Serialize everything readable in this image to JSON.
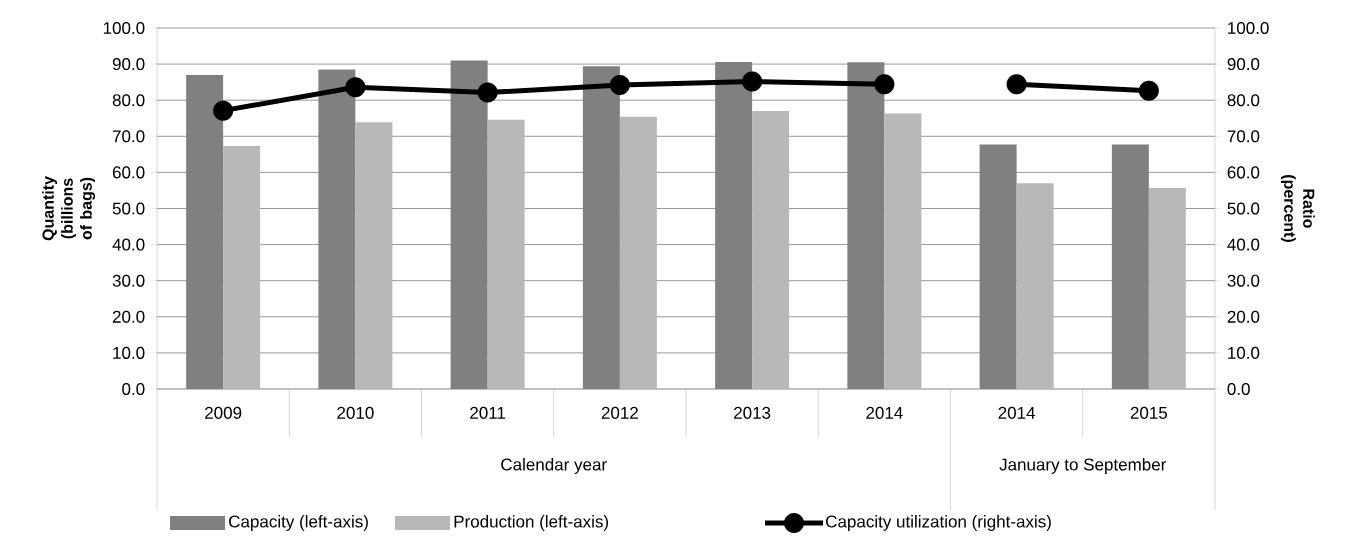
{
  "chart_data": {
    "type": "bar",
    "categories": [
      "2009",
      "2010",
      "2011",
      "2012",
      "2013",
      "2014",
      "2014",
      "2015"
    ],
    "ylabel": "Quantity (billions of bags)",
    "y2label": "Ratio (percent)",
    "ylim": [
      0,
      100
    ],
    "yticks": [
      {
        "value": 0,
        "label": "0.0"
      },
      {
        "value": 10,
        "label": "10.0"
      },
      {
        "value": 20,
        "label": "20.0"
      },
      {
        "value": 30,
        "label": "30.0"
      },
      {
        "value": 40,
        "label": "40.0"
      },
      {
        "value": 50,
        "label": "50.0"
      },
      {
        "value": 60,
        "label": "60.0"
      },
      {
        "value": 70,
        "label": "70.0"
      },
      {
        "value": 80,
        "label": "80.0"
      },
      {
        "value": 90,
        "label": "90.0"
      },
      {
        "value": 100,
        "label": "100.0"
      }
    ],
    "y2lim": [
      0,
      100
    ],
    "y2ticks": [
      {
        "value": 0,
        "label": "0.0"
      },
      {
        "value": 10,
        "label": "10.0"
      },
      {
        "value": 20,
        "label": "20.0"
      },
      {
        "value": 30,
        "label": "30.0"
      },
      {
        "value": 40,
        "label": "40.0"
      },
      {
        "value": 50,
        "label": "50.0"
      },
      {
        "value": 60,
        "label": "60.0"
      },
      {
        "value": 70,
        "label": "70.0"
      },
      {
        "value": 80,
        "label": "80.0"
      },
      {
        "value": 90,
        "label": "90.0"
      },
      {
        "value": 100,
        "label": "100.0"
      }
    ],
    "grid": "y",
    "legend": "bottom",
    "annotations": [
      "Calendar year",
      "January to September"
    ],
    "series": [
      {
        "name": "Capacity (left-axis)",
        "color": "#808080",
        "values": [
          87.0,
          88.5,
          91.0,
          89.4,
          90.6,
          90.5,
          67.7,
          67.7
        ]
      },
      {
        "name": "Production (left-axis)",
        "color": "#b8b8b8",
        "values": [
          67.3,
          73.9,
          74.6,
          75.4,
          77.0,
          76.3,
          57.0,
          55.7
        ]
      },
      {
        "name": "Capacity utilization (right-axis)",
        "type": "line",
        "axis": "y2",
        "color": "#000000",
        "marker": "circle",
        "values": [
          77.1,
          83.6,
          82.1,
          84.2,
          85.2,
          84.4,
          null,
          null
        ]
      },
      {
        "type": "line",
        "axis": "y2",
        "color": "#000000",
        "marker": "circle",
        "values": [
          null,
          null,
          null,
          null,
          null,
          null,
          84.4,
          82.6
        ]
      }
    ]
  }
}
